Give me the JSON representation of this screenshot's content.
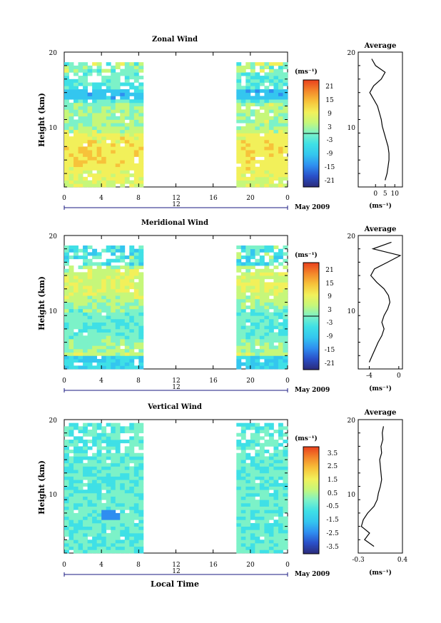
{
  "colors": {
    "colormap": [
      "#2b2b7a",
      "#2a4fc8",
      "#2f8ef0",
      "#34c6ef",
      "#3fe0e6",
      "#7cf2c8",
      "#c6f77a",
      "#f2f05a",
      "#f7c23a",
      "#f3862a",
      "#e9401d"
    ],
    "axis": "#000000",
    "date_axis": "#1a1a80"
  },
  "shared": {
    "x_ticks": [
      "0",
      "4",
      "8",
      "12",
      "16",
      "20",
      "0"
    ],
    "date_tick": "12",
    "date_label": "May 2009",
    "ylabel": "Height (km)",
    "y_ticks": [
      "10",
      "20"
    ],
    "units": "(ms⁻¹)",
    "xlabel": "Local Time",
    "profile_title": "Average"
  },
  "chart_data": [
    {
      "type": "heatmap",
      "title": "Zonal Wind",
      "x_range": [
        0,
        24
      ],
      "ylim": [
        0,
        20
      ],
      "data_gap_hours": [
        8.5,
        18.5
      ],
      "colorbar_ticks": [
        "21",
        "15",
        "9",
        "3",
        "-3",
        "-9",
        "-15",
        "-21"
      ],
      "colorbar_range": [
        -24,
        24
      ],
      "profile": {
        "xlim": [
          -9,
          14
        ],
        "x_ticks": [
          "0",
          "5",
          "10"
        ],
        "tick_values": [
          0,
          5,
          10
        ],
        "heights": [
          1,
          2,
          3,
          4,
          5,
          6,
          7,
          8,
          9,
          10,
          11,
          12,
          13,
          14,
          15,
          16,
          17,
          18,
          19
        ],
        "values": [
          5,
          6,
          6.5,
          7,
          7,
          6.5,
          5.5,
          4.5,
          3.5,
          3,
          2,
          1,
          -1,
          -3,
          -1,
          3,
          5,
          0,
          -2
        ]
      }
    },
    {
      "type": "heatmap",
      "title": "Meridional Wind",
      "x_range": [
        0,
        24
      ],
      "ylim": [
        0,
        20
      ],
      "data_gap_hours": [
        8.5,
        18.5
      ],
      "colorbar_ticks": [
        "21",
        "15",
        "9",
        "3",
        "-3",
        "-9",
        "-15",
        "-21"
      ],
      "colorbar_range": [
        -24,
        24
      ],
      "profile": {
        "xlim": [
          -5.5,
          0.5
        ],
        "x_ticks": [
          "-4",
          "0"
        ],
        "tick_values": [
          -4,
          0
        ],
        "heights": [
          1,
          2,
          3,
          4,
          5,
          6,
          7,
          8,
          9,
          10,
          11,
          12,
          13,
          14,
          15,
          16,
          17,
          18,
          19
        ],
        "values": [
          -4,
          -3.6,
          -3.2,
          -2.8,
          -2.3,
          -2.0,
          -2.3,
          -2.0,
          -1.5,
          -1.2,
          -1.4,
          -2.0,
          -3.0,
          -3.8,
          -3.3,
          -1.5,
          0.2,
          -3.5,
          -1.0
        ]
      }
    },
    {
      "type": "heatmap",
      "title": "Vertical Wind",
      "x_range": [
        0,
        24
      ],
      "ylim": [
        0,
        20
      ],
      "data_gap_hours": [
        8.5,
        18.5
      ],
      "colorbar_ticks": [
        "3.5",
        "2.5",
        "1.5",
        "0.5",
        "-0.5",
        "-1.5",
        "-2.5",
        "-3.5"
      ],
      "colorbar_range": [
        -4,
        4
      ],
      "profile": {
        "xlim": [
          -0.3,
          0.4
        ],
        "x_ticks": [
          "-0.3",
          "0.4"
        ],
        "tick_values": [
          -0.3,
          0.4
        ],
        "heights": [
          1,
          2,
          3,
          4,
          5,
          6,
          7,
          8,
          9,
          10,
          11,
          12,
          13,
          14,
          15,
          16,
          17,
          18,
          19
        ],
        "values": [
          -0.05,
          -0.2,
          -0.12,
          -0.25,
          -0.22,
          -0.15,
          -0.05,
          0.0,
          0.02,
          0.05,
          0.07,
          0.06,
          0.05,
          0.04,
          0.07,
          0.06,
          0.09,
          0.08,
          0.1
        ]
      }
    }
  ]
}
